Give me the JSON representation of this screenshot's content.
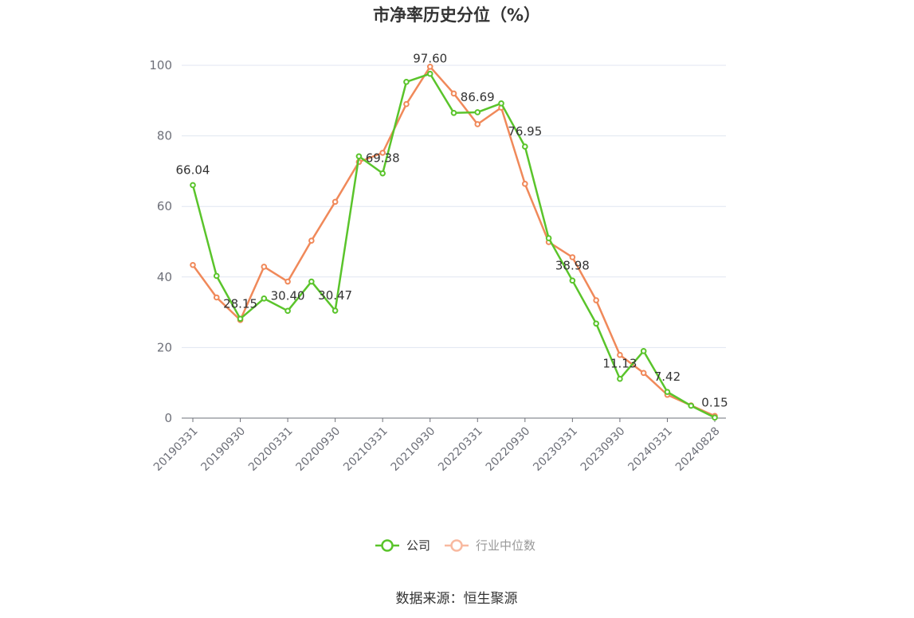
{
  "chart_data": {
    "type": "line",
    "title": "市净率历史分位（%）",
    "source": "数据来源：恒生聚源",
    "ylim": [
      0,
      100
    ],
    "yticks": [
      0,
      20,
      40,
      60,
      80,
      100
    ],
    "xtick_labels": [
      "20190331",
      "20190930",
      "20200331",
      "20200930",
      "20210331",
      "20210930",
      "20220331",
      "20220930",
      "20230331",
      "20230930",
      "20240331",
      "20240828"
    ],
    "x_count": 23,
    "grid": true,
    "legend_position": "bottom-center",
    "series": [
      {
        "name": "公司",
        "color": "#5ac42b",
        "values": [
          66.04,
          40.3,
          28.15,
          33.9,
          30.4,
          38.7,
          30.47,
          74.2,
          69.38,
          95.3,
          97.6,
          86.5,
          86.69,
          89.2,
          76.95,
          51.0,
          38.98,
          26.8,
          11.13,
          19.0,
          7.42,
          3.5,
          0.15
        ],
        "labeled_indices": [
          0,
          2,
          4,
          6,
          8,
          10,
          12,
          14,
          16,
          18,
          20,
          22
        ]
      },
      {
        "name": "行业中位数",
        "color": "#f0895a",
        "values": [
          43.4,
          34.2,
          27.8,
          42.9,
          38.7,
          50.3,
          61.3,
          72.6,
          75.2,
          89.0,
          99.6,
          92.0,
          83.3,
          88.0,
          66.4,
          49.9,
          45.6,
          33.4,
          17.9,
          12.8,
          6.6,
          3.6,
          0.6
        ],
        "labeled_indices": []
      }
    ]
  }
}
